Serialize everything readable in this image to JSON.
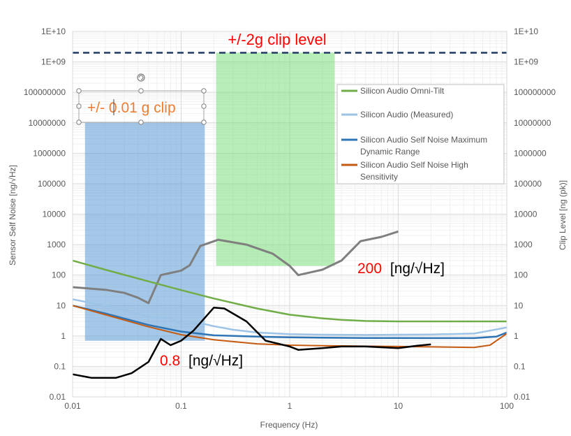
{
  "chart_data": {
    "type": "line",
    "xlabel": "Frequency (Hz)",
    "ylabel_left": "Sensor Self Noise [ng/√Hz]",
    "ylabel_right": "Clip Level [ng (pk)]",
    "x_scale": "log",
    "y_scale": "log",
    "xlim": [
      0.01,
      100
    ],
    "ylim": [
      0.01,
      10000000000
    ],
    "x_ticks": [
      "0.01",
      "0.1",
      "1",
      "10",
      "100"
    ],
    "y_ticks": [
      "0.01",
      "0.1",
      "1",
      "10",
      "100",
      "1000",
      "10000",
      "100000",
      "1000000",
      "10000000",
      "100000000",
      "1E+09",
      "1E+10"
    ],
    "grid": true,
    "legend_position": "right",
    "series": [
      {
        "name": "Silicon Audio Omni-Tilt",
        "color": "#70ad47",
        "points": [
          [
            0.01,
            300
          ],
          [
            0.02,
            150
          ],
          [
            0.05,
            62
          ],
          [
            0.1,
            32
          ],
          [
            0.2,
            17
          ],
          [
            0.5,
            8
          ],
          [
            1,
            5
          ],
          [
            2,
            3.8
          ],
          [
            3,
            3.4
          ],
          [
            5,
            3.1
          ],
          [
            10,
            3
          ],
          [
            20,
            3
          ],
          [
            50,
            3
          ],
          [
            100,
            3
          ]
        ]
      },
      {
        "name": "Silicon Audio (Measured)",
        "color": "#9dc3e6",
        "points": [
          [
            0.01,
            16
          ],
          [
            0.02,
            10
          ],
          [
            0.03,
            7
          ],
          [
            0.05,
            4.2
          ],
          [
            0.08,
            3.8
          ],
          [
            0.1,
            2.4
          ],
          [
            0.13,
            2.6
          ],
          [
            0.17,
            2.4
          ],
          [
            0.2,
            2.1
          ],
          [
            0.3,
            1.6
          ],
          [
            0.5,
            1.3
          ],
          [
            1,
            1.15
          ],
          [
            2,
            1.1
          ],
          [
            5,
            1.08
          ],
          [
            10,
            1.1
          ],
          [
            20,
            1.12
          ],
          [
            50,
            1.2
          ],
          [
            100,
            1.9
          ]
        ]
      },
      {
        "name": "Silicon Audio Self Noise Maximum Dynamic Range",
        "color": "#2e75b6",
        "points": [
          [
            0.01,
            10
          ],
          [
            0.02,
            5.5
          ],
          [
            0.05,
            2.3
          ],
          [
            0.1,
            1.4
          ],
          [
            0.2,
            1.05
          ],
          [
            0.5,
            0.95
          ],
          [
            1,
            0.9
          ],
          [
            2,
            0.88
          ],
          [
            5,
            0.86
          ],
          [
            10,
            0.86
          ],
          [
            20,
            0.85
          ],
          [
            50,
            0.85
          ],
          [
            80,
            0.95
          ],
          [
            100,
            1.3
          ]
        ]
      },
      {
        "name": "Silicon Audio Self Noise High Sensitivity",
        "color": "#c55a11",
        "points": [
          [
            0.01,
            10
          ],
          [
            0.02,
            5
          ],
          [
            0.05,
            2
          ],
          [
            0.1,
            1.1
          ],
          [
            0.2,
            0.75
          ],
          [
            0.5,
            0.55
          ],
          [
            1,
            0.5
          ],
          [
            2,
            0.48
          ],
          [
            5,
            0.46
          ],
          [
            10,
            0.45
          ],
          [
            20,
            0.44
          ],
          [
            50,
            0.42
          ],
          [
            70,
            0.5
          ],
          [
            100,
            1.2
          ]
        ]
      },
      {
        "name": "",
        "color": "#7f7f7f",
        "points": [
          [
            0.01,
            40
          ],
          [
            0.02,
            33
          ],
          [
            0.03,
            26
          ],
          [
            0.04,
            18
          ],
          [
            0.05,
            12
          ],
          [
            0.065,
            100
          ],
          [
            0.1,
            140
          ],
          [
            0.12,
            210
          ],
          [
            0.15,
            900
          ],
          [
            0.22,
            1450
          ],
          [
            0.4,
            1000
          ],
          [
            0.7,
            500
          ],
          [
            1,
            200
          ],
          [
            1.2,
            100
          ],
          [
            2,
            150
          ],
          [
            3,
            300
          ],
          [
            4.5,
            1300
          ],
          [
            7,
            1800
          ],
          [
            10,
            2700
          ]
        ]
      },
      {
        "name": "",
        "color": "#000000",
        "points": [
          [
            0.01,
            0.055
          ],
          [
            0.015,
            0.042
          ],
          [
            0.025,
            0.042
          ],
          [
            0.035,
            0.06
          ],
          [
            0.05,
            0.14
          ],
          [
            0.065,
            0.8
          ],
          [
            0.08,
            0.5
          ],
          [
            0.1,
            0.7
          ],
          [
            0.13,
            1.5
          ],
          [
            0.2,
            8.5
          ],
          [
            0.25,
            8
          ],
          [
            0.4,
            3
          ],
          [
            0.6,
            0.7
          ],
          [
            1,
            0.45
          ],
          [
            1.2,
            0.35
          ],
          [
            2,
            0.4
          ],
          [
            3,
            0.45
          ],
          [
            5,
            0.45
          ],
          [
            10,
            0.4
          ],
          [
            15,
            0.48
          ],
          [
            20,
            0.53
          ]
        ]
      }
    ],
    "clip_level": {
      "value": 2000000000,
      "label": "+/-2g clip level",
      "color": "#203864"
    },
    "regions": [
      {
        "label": "+/- 0.01 g clip",
        "color": "#5b9bd5",
        "x": [
          0.013,
          0.165
        ],
        "y": [
          0.7,
          10000000
        ]
      },
      {
        "label": "",
        "color": "#70db70",
        "x": [
          0.21,
          2.6
        ],
        "y": [
          200,
          2000000000
        ]
      }
    ],
    "annotations": [
      {
        "value": "200",
        "unit": "[ng/√Hz]"
      },
      {
        "value": "0.8",
        "unit": "[ng/√Hz]"
      }
    ]
  }
}
